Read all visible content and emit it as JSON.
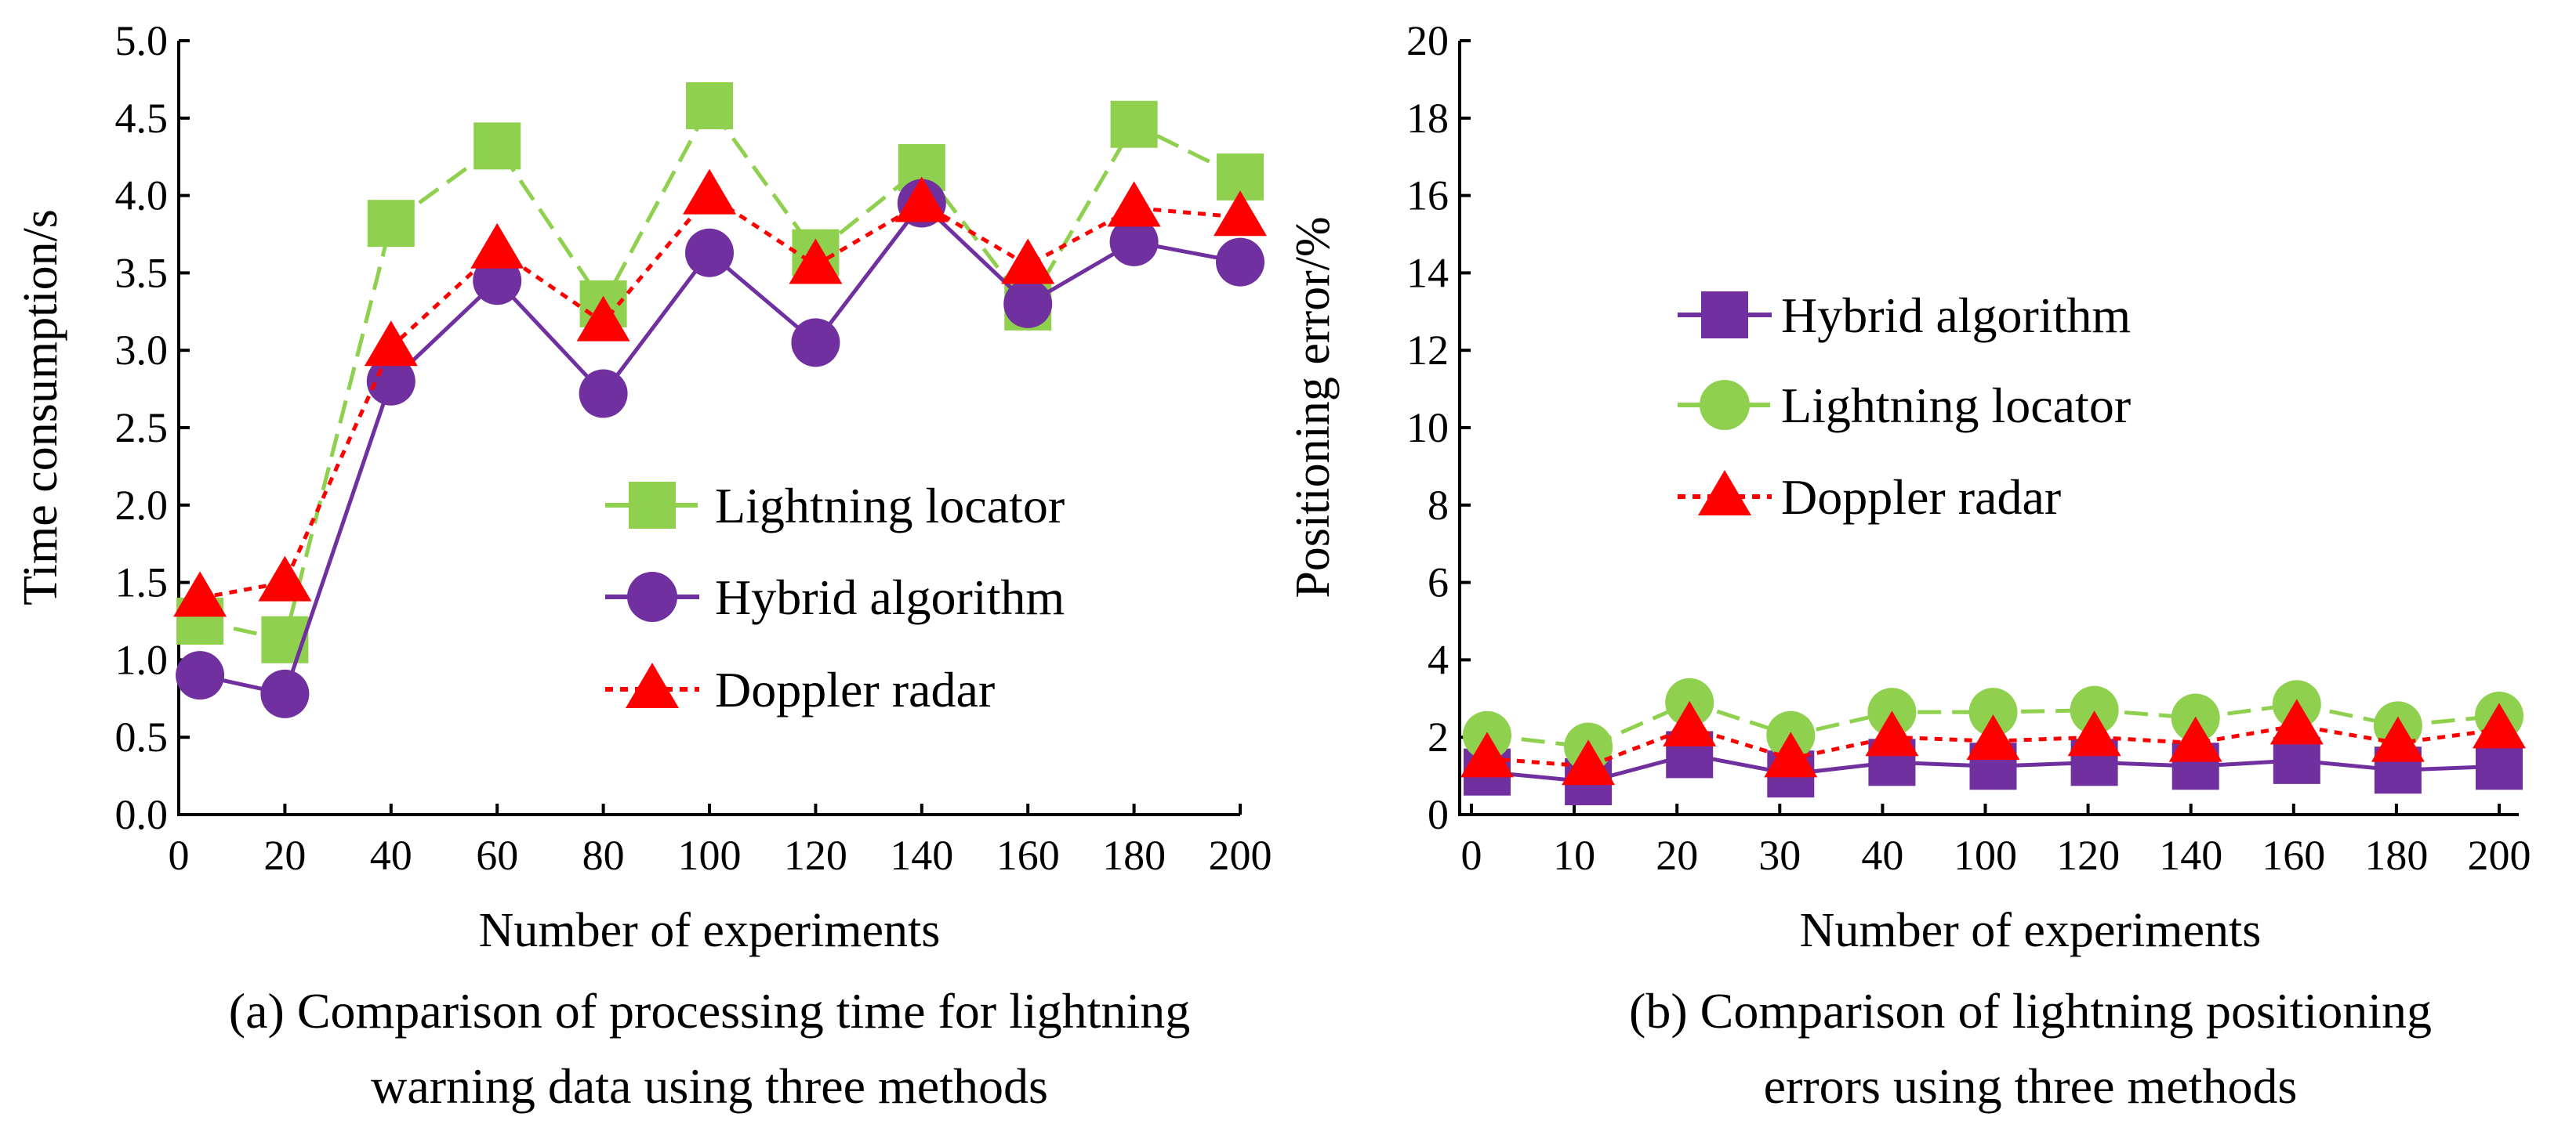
{
  "chart_data": [
    {
      "type": "line",
      "panel": "a",
      "xlabel": "Number of experiments",
      "ylabel": "Time consumption/s",
      "caption_lines": [
        "(a) Comparison of processing time for lightning",
        "warning data using three methods"
      ],
      "x_ticks": [
        "0",
        "20",
        "40",
        "60",
        "80",
        "100",
        "120",
        "140",
        "160",
        "180",
        "200"
      ],
      "y_ticks": [
        "0.0",
        "0.5",
        "1.0",
        "1.5",
        "2.0",
        "2.5",
        "3.0",
        "3.5",
        "4.0",
        "4.5",
        "5.0"
      ],
      "xlim": [
        0,
        200
      ],
      "ylim": [
        0,
        5
      ],
      "legend_position": "center-right",
      "series": [
        {
          "name": "Lightning locator",
          "color": "#8fd14f",
          "marker": "square",
          "dash": "long-dash",
          "x": [
            4,
            20,
            40,
            60,
            80,
            100,
            120,
            140,
            160,
            180,
            200
          ],
          "values": [
            1.25,
            1.13,
            3.82,
            4.32,
            3.3,
            4.58,
            3.63,
            4.18,
            3.28,
            4.46,
            4.12
          ]
        },
        {
          "name": "Hybrid algorithm",
          "color": "#7030a0",
          "marker": "circle",
          "dash": "solid",
          "x": [
            4,
            20,
            40,
            60,
            80,
            100,
            120,
            140,
            160,
            180,
            200
          ],
          "values": [
            0.9,
            0.78,
            2.8,
            3.45,
            2.72,
            3.63,
            3.05,
            3.95,
            3.3,
            3.7,
            3.57
          ]
        },
        {
          "name": "Doppler radar",
          "color": "#ff0000",
          "marker": "triangle",
          "dash": "dotted",
          "x": [
            4,
            20,
            40,
            60,
            80,
            100,
            120,
            140,
            160,
            180,
            200
          ],
          "values": [
            1.4,
            1.5,
            3.02,
            3.65,
            3.18,
            4.0,
            3.55,
            3.95,
            3.55,
            3.92,
            3.86
          ]
        }
      ]
    },
    {
      "type": "line",
      "panel": "b",
      "xlabel": "Number of experiments",
      "ylabel": "Positioning error/%",
      "caption_lines": [
        "(b) Comparison of lightning positioning",
        "errors using three methods"
      ],
      "categories": [
        "0",
        "10",
        "20",
        "30",
        "40",
        "100",
        "120",
        "140",
        "160",
        "180",
        "200"
      ],
      "y_ticks": [
        "0",
        "2",
        "4",
        "6",
        "8",
        "10",
        "12",
        "14",
        "16",
        "18",
        "20"
      ],
      "ylim": [
        0,
        20
      ],
      "legend_position": "upper-center",
      "series": [
        {
          "name": "Hybrid algorithm",
          "color": "#7030a0",
          "marker": "square",
          "dash": "solid",
          "values": [
            1.1,
            0.85,
            1.55,
            1.05,
            1.35,
            1.25,
            1.35,
            1.25,
            1.4,
            1.15,
            1.25
          ]
        },
        {
          "name": "Lightning locator",
          "color": "#8fd14f",
          "marker": "circle",
          "dash": "long-dash",
          "values": [
            2.05,
            1.75,
            2.9,
            2.05,
            2.65,
            2.65,
            2.7,
            2.5,
            2.85,
            2.3,
            2.55
          ]
        },
        {
          "name": "Doppler radar",
          "color": "#ff0000",
          "marker": "triangle",
          "dash": "dotted",
          "values": [
            1.45,
            1.25,
            2.25,
            1.45,
            2.0,
            1.9,
            2.0,
            1.85,
            2.3,
            1.85,
            2.2
          ]
        }
      ]
    }
  ]
}
